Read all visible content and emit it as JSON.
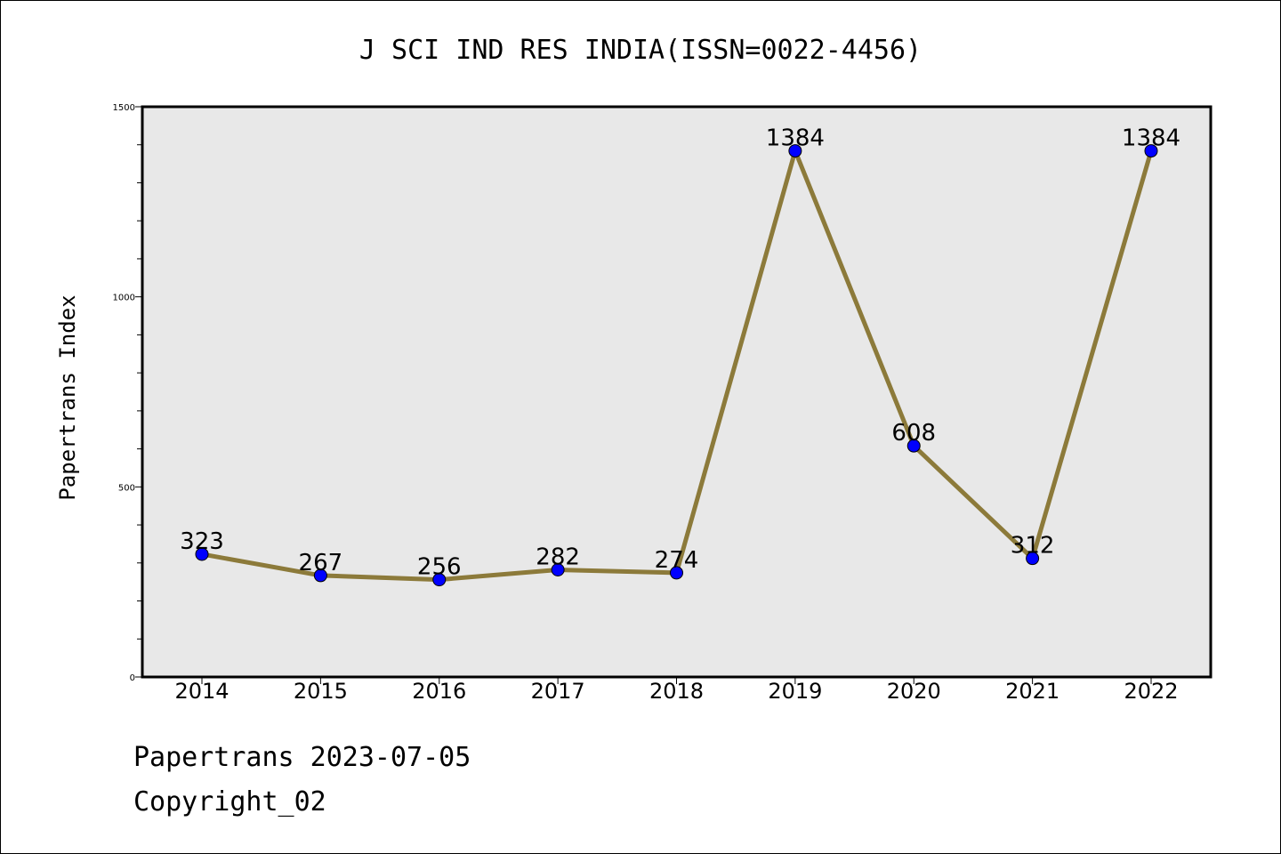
{
  "chart_data": {
    "type": "line",
    "title": "J SCI IND RES INDIA(ISSN=0022-4456)",
    "xlabel": "",
    "ylabel": "Papertrans Index",
    "categories": [
      "2014",
      "2015",
      "2016",
      "2017",
      "2018",
      "2019",
      "2020",
      "2021",
      "2022"
    ],
    "series": [
      {
        "values": [
          323,
          267,
          256,
          282,
          274,
          1384,
          608,
          312,
          1384
        ]
      }
    ],
    "data_labels": [
      "323",
      "267",
      "256",
      "282",
      "274",
      "1384",
      "608",
      "312",
      "1384"
    ],
    "ylim": [
      0,
      1500
    ],
    "yticks": [
      0,
      500,
      1000,
      1500
    ],
    "ytick_labels": [
      "0",
      "500",
      "1000",
      "1500"
    ],
    "yminor_step": 100,
    "grid": false,
    "legend": "none",
    "colors": {
      "line": "#8c7a3a",
      "marker": "#0000ff",
      "plot_background": "#e8e8e8"
    }
  },
  "footer": {
    "line1": "Papertrans 2023-07-05",
    "line2": "Copyright_02"
  }
}
